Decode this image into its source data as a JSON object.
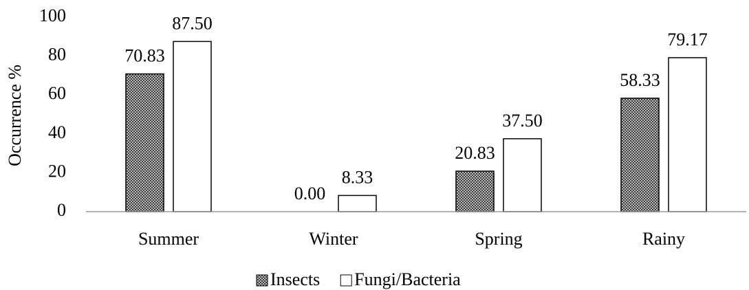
{
  "chart_data": {
    "type": "bar",
    "y_axis_label": "Occurrence %",
    "categories": [
      "Summer",
      "Winter",
      "Spring",
      "Rainy"
    ],
    "series": [
      {
        "name": "Insects",
        "color": "#3a3a3a",
        "pattern": "checker",
        "values": [
          70.83,
          0,
          20.83,
          58.33
        ],
        "value_labels": [
          "70.83",
          "0.00",
          "20.83",
          "58.33"
        ]
      },
      {
        "name": "Fungi/Bacteria",
        "color": "#ffffff",
        "values": [
          87.5,
          8.33,
          37.5,
          79.17
        ],
        "value_labels": [
          "87.50",
          "8.33",
          "37.50",
          "79.17"
        ]
      }
    ],
    "ylim": [
      0,
      100
    ],
    "yticks": [
      0,
      20,
      40,
      60,
      80,
      100
    ],
    "grid": false,
    "legend": "bottom"
  }
}
